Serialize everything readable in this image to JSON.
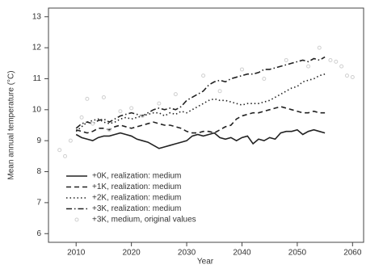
{
  "chart_data": {
    "type": "line",
    "x_label": "Year",
    "y_label": "Mean annual temperature  (°C)",
    "xlim": [
      2005,
      2062
    ],
    "xticks": [
      2010,
      2020,
      2030,
      2040,
      2050,
      2060
    ],
    "ylim": [
      5.72,
      13.28
    ],
    "yticks": [
      6,
      7,
      8,
      9,
      10,
      11,
      12,
      13
    ],
    "legend": "lower-left",
    "x": [
      2010,
      2011,
      2012,
      2013,
      2014,
      2015,
      2016,
      2017,
      2018,
      2019,
      2020,
      2021,
      2022,
      2023,
      2024,
      2025,
      2026,
      2027,
      2028,
      2029,
      2030,
      2031,
      2032,
      2033,
      2034,
      2035,
      2036,
      2037,
      2038,
      2039,
      2040,
      2041,
      2042,
      2043,
      2044,
      2045,
      2046,
      2047,
      2048,
      2049,
      2050,
      2051,
      2052,
      2053,
      2054,
      2055
    ],
    "series": [
      {
        "name": "+0K, realization: medium",
        "color": "#222222",
        "linestyle": "solid",
        "values": [
          9.2,
          9.1,
          9.05,
          9.0,
          9.1,
          9.15,
          9.15,
          9.2,
          9.25,
          9.2,
          9.15,
          9.05,
          9.0,
          8.95,
          8.85,
          8.75,
          8.8,
          8.85,
          8.9,
          8.95,
          9.0,
          9.15,
          9.2,
          9.15,
          9.2,
          9.25,
          9.1,
          9.05,
          9.1,
          9.0,
          9.1,
          9.15,
          8.9,
          9.05,
          9.0,
          9.1,
          9.05,
          9.25,
          9.3,
          9.3,
          9.35,
          9.2,
          9.3,
          9.35,
          9.3,
          9.25
        ]
      },
      {
        "name": "+1K, realization: medium",
        "color": "#222222",
        "linestyle": "dashed",
        "values": [
          9.35,
          9.3,
          9.25,
          9.3,
          9.4,
          9.4,
          9.35,
          9.45,
          9.5,
          9.45,
          9.4,
          9.45,
          9.5,
          9.55,
          9.6,
          9.55,
          9.5,
          9.5,
          9.45,
          9.4,
          9.3,
          9.25,
          9.25,
          9.3,
          9.3,
          9.25,
          9.35,
          9.45,
          9.5,
          9.7,
          9.8,
          9.85,
          9.9,
          9.9,
          9.95,
          10.0,
          10.05,
          10.1,
          10.05,
          10.0,
          9.95,
          9.9,
          9.9,
          9.95,
          9.9,
          9.9
        ]
      },
      {
        "name": "+2K, realization: medium",
        "color": "#222222",
        "linestyle": "dotted",
        "values": [
          9.3,
          9.45,
          9.6,
          9.65,
          9.7,
          9.6,
          9.55,
          9.6,
          9.7,
          9.75,
          9.7,
          9.75,
          9.8,
          9.85,
          9.9,
          9.9,
          9.8,
          9.9,
          9.85,
          9.95,
          9.9,
          10.0,
          10.1,
          10.2,
          10.3,
          10.35,
          10.3,
          10.3,
          10.25,
          10.2,
          10.15,
          10.2,
          10.2,
          10.2,
          10.25,
          10.3,
          10.4,
          10.5,
          10.6,
          10.7,
          10.75,
          10.9,
          10.95,
          11.0,
          11.1,
          11.15
        ]
      },
      {
        "name": "+3K, realization: medium",
        "color": "#222222",
        "linestyle": "dashdot",
        "values": [
          9.4,
          9.55,
          9.6,
          9.55,
          9.65,
          9.7,
          9.6,
          9.7,
          9.8,
          9.85,
          9.9,
          9.85,
          9.8,
          9.9,
          10.0,
          10.05,
          10.0,
          10.05,
          10.0,
          10.1,
          10.3,
          10.4,
          10.5,
          10.6,
          10.8,
          10.9,
          10.95,
          10.9,
          11.0,
          11.05,
          11.1,
          11.15,
          11.15,
          11.2,
          11.3,
          11.3,
          11.35,
          11.4,
          11.45,
          11.5,
          11.55,
          11.6,
          11.55,
          11.65,
          11.6,
          11.7
        ]
      },
      {
        "name": "+3K, medium, original values",
        "color": "#cfcfcf",
        "type": "scatter",
        "x": [
          2007,
          2008,
          2009,
          2011,
          2012,
          2013,
          2015,
          2016,
          2018,
          2020,
          2022,
          2025,
          2028,
          2033,
          2036,
          2040,
          2044,
          2048,
          2052,
          2054,
          2056,
          2057,
          2058,
          2059,
          2060
        ],
        "values": [
          8.7,
          8.5,
          9.0,
          9.75,
          10.35,
          9.55,
          10.4,
          9.35,
          9.95,
          10.05,
          9.8,
          10.2,
          10.5,
          11.1,
          10.6,
          11.3,
          11.0,
          11.6,
          11.4,
          12.0,
          11.6,
          11.55,
          11.4,
          11.1,
          11.05
        ]
      }
    ]
  }
}
